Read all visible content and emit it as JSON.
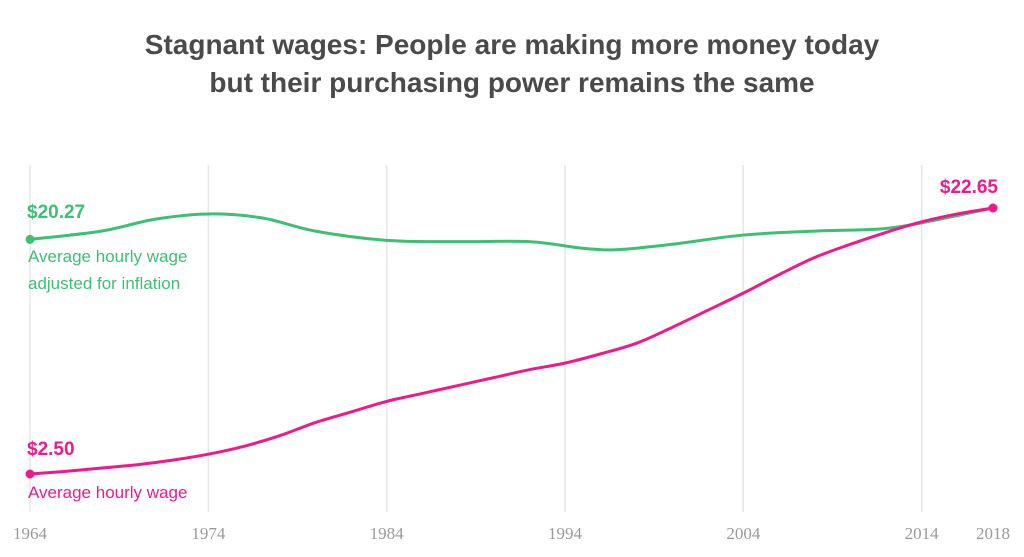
{
  "colors": {
    "inflation_adjusted": "#3dbf74",
    "nominal": "#f0198c",
    "grid": "#e6e6e6",
    "tick": "#9a9a9a",
    "title": "#4a4a4a"
  },
  "chart_data": {
    "type": "line",
    "title_line1": "Stagnant wages: People are making more money today",
    "title_line2": "but their purchasing power remains the same",
    "xlabel": "",
    "ylabel": "",
    "x_ticks": [
      1964,
      1974,
      1984,
      1994,
      2004,
      2014,
      2018
    ],
    "xlim": [
      1964,
      2018
    ],
    "ylim": [
      1.0,
      25.0
    ],
    "grid": "vertical",
    "series": [
      {
        "name": "Average hourly wage adjusted for inflation",
        "label_lines": [
          "Average hourly wage",
          "adjusted for inflation"
        ],
        "start_label": "$20.27",
        "end_label": "$22.65",
        "x": [
          1964,
          1968,
          1971,
          1974,
          1977,
          1980,
          1984,
          1988,
          1992,
          1995,
          1997,
          2000,
          2004,
          2008,
          2012,
          2015,
          2018
        ],
        "y": [
          20.27,
          20.9,
          21.8,
          22.2,
          21.9,
          20.9,
          20.2,
          20.1,
          20.1,
          19.6,
          19.5,
          19.9,
          20.6,
          20.9,
          21.1,
          21.8,
          22.65
        ]
      },
      {
        "name": "Average hourly wage",
        "label_lines": [
          "Average hourly wage"
        ],
        "start_label": "$2.50",
        "end_label": "$22.65",
        "x": [
          1964,
          1966,
          1968,
          1970,
          1972,
          1974,
          1976,
          1978,
          1980,
          1982,
          1984,
          1986,
          1988,
          1990,
          1992,
          1994,
          1996,
          1998,
          2000,
          2002,
          2004,
          2006,
          2008,
          2010,
          2012,
          2014,
          2016,
          2018
        ],
        "y": [
          2.5,
          2.7,
          2.95,
          3.2,
          3.55,
          4.0,
          4.6,
          5.4,
          6.4,
          7.2,
          8.0,
          8.6,
          9.2,
          9.8,
          10.4,
          10.9,
          11.6,
          12.4,
          13.6,
          14.9,
          16.2,
          17.6,
          18.9,
          19.9,
          20.8,
          21.6,
          22.2,
          22.65
        ]
      }
    ]
  }
}
